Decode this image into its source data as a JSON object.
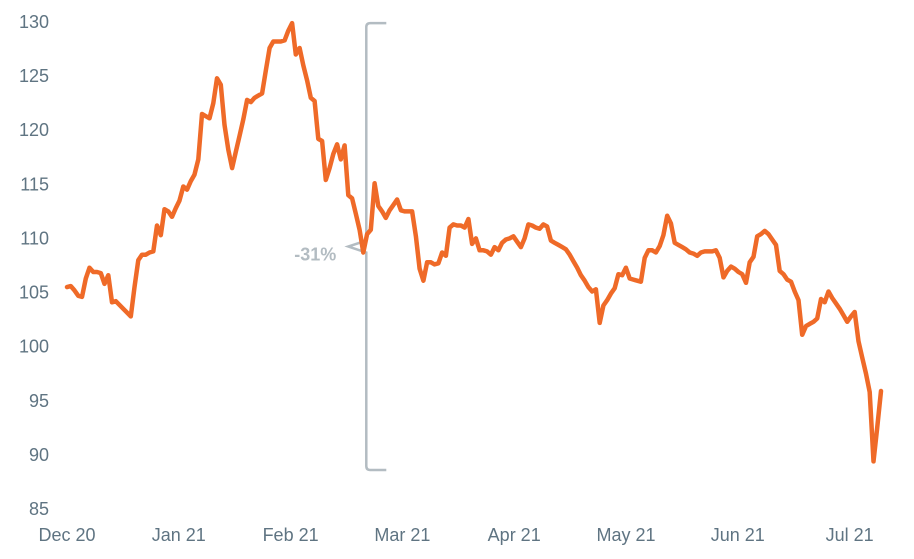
{
  "chart_data": {
    "type": "line",
    "title": "",
    "xlabel": "",
    "ylabel": "",
    "ylim": [
      85,
      130
    ],
    "y_ticks": [
      85,
      90,
      95,
      100,
      105,
      110,
      115,
      120,
      125,
      130
    ],
    "x_ticks": [
      "Dec 20",
      "Jan 21",
      "Feb 21",
      "Mar 21",
      "Apr 21",
      "May 21",
      "Jun 21",
      "Jul 21"
    ],
    "grid": false,
    "line_color": "#ef6a28",
    "annotation": {
      "label": "-31%",
      "color": "#b3bcc2",
      "y_top": 129.9,
      "y_bottom": 88.6,
      "day": 39
    },
    "series": [
      {
        "name": "",
        "points": [
          [
            0,
            105.5
          ],
          [
            1,
            105.6
          ],
          [
            2,
            105.2
          ],
          [
            3,
            104.7
          ],
          [
            4,
            104.6
          ],
          [
            5,
            106.3
          ],
          [
            6,
            107.3
          ],
          [
            7,
            106.9
          ],
          [
            8,
            106.9
          ],
          [
            9,
            106.8
          ],
          [
            10,
            105.8
          ],
          [
            11,
            106.6
          ],
          [
            12,
            104.1
          ],
          [
            13,
            104.2
          ],
          [
            15,
            103.5
          ],
          [
            17,
            102.8
          ],
          [
            18,
            105.5
          ],
          [
            19,
            108.0
          ],
          [
            20,
            108.5
          ],
          [
            21,
            108.5
          ],
          [
            22,
            108.7
          ],
          [
            23,
            108.8
          ],
          [
            24,
            111.2
          ],
          [
            25,
            110.3
          ],
          [
            26,
            112.7
          ],
          [
            27,
            112.5
          ],
          [
            28,
            112.0
          ],
          [
            29,
            112.8
          ],
          [
            30,
            113.5
          ],
          [
            31,
            114.8
          ],
          [
            32,
            114.5
          ],
          [
            33,
            115.3
          ],
          [
            34,
            115.9
          ],
          [
            35,
            117.3
          ],
          [
            36,
            121.5
          ],
          [
            37,
            121.3
          ],
          [
            38,
            121.1
          ],
          [
            39,
            122.5
          ],
          [
            40,
            124.8
          ],
          [
            41,
            124.2
          ],
          [
            42,
            120.5
          ],
          [
            43,
            118.2
          ],
          [
            44,
            116.5
          ],
          [
            45,
            118.0
          ],
          [
            46,
            119.5
          ],
          [
            47,
            121.0
          ],
          [
            48,
            122.8
          ],
          [
            49,
            122.6
          ],
          [
            50,
            123.0
          ],
          [
            51,
            123.2
          ],
          [
            52,
            123.4
          ],
          [
            53,
            125.5
          ],
          [
            54,
            127.6
          ],
          [
            55,
            128.2
          ],
          [
            56,
            128.2
          ],
          [
            57,
            128.2
          ],
          [
            58,
            128.3
          ],
          [
            59,
            129.2
          ],
          [
            60,
            129.9
          ],
          [
            61,
            127.0
          ],
          [
            62,
            127.6
          ],
          [
            63,
            126.0
          ],
          [
            64,
            124.6
          ],
          [
            65,
            123.0
          ],
          [
            66,
            122.7
          ],
          [
            67,
            119.2
          ],
          [
            68,
            119.0
          ],
          [
            69,
            115.4
          ],
          [
            70,
            116.5
          ],
          [
            71,
            117.8
          ],
          [
            72,
            118.7
          ],
          [
            73,
            117.3
          ],
          [
            74,
            118.6
          ],
          [
            75,
            114.0
          ],
          [
            76,
            113.7
          ],
          [
            77,
            112.3
          ],
          [
            78,
            110.8
          ],
          [
            79,
            108.7
          ],
          [
            80,
            110.4
          ],
          [
            81,
            110.8
          ],
          [
            82,
            115.1
          ],
          [
            83,
            113.0
          ],
          [
            84,
            112.5
          ],
          [
            85,
            111.9
          ],
          [
            86,
            112.6
          ],
          [
            87,
            113.1
          ],
          [
            88,
            113.6
          ],
          [
            89,
            112.6
          ],
          [
            90,
            112.5
          ],
          [
            91,
            112.5
          ],
          [
            92,
            112.5
          ],
          [
            93,
            110.2
          ],
          [
            94,
            107.2
          ],
          [
            95,
            106.1
          ],
          [
            96,
            107.8
          ],
          [
            97,
            107.8
          ],
          [
            98,
            107.6
          ],
          [
            99,
            107.7
          ],
          [
            100,
            108.7
          ],
          [
            101,
            108.4
          ],
          [
            102,
            111.0
          ],
          [
            103,
            111.3
          ],
          [
            104,
            111.2
          ],
          [
            105,
            111.2
          ],
          [
            106,
            111.0
          ],
          [
            107,
            111.8
          ],
          [
            108,
            109.5
          ],
          [
            109,
            110.0
          ],
          [
            110,
            108.9
          ],
          [
            111,
            108.9
          ],
          [
            112,
            108.8
          ],
          [
            113,
            108.5
          ],
          [
            114,
            109.2
          ],
          [
            115,
            108.9
          ],
          [
            116,
            109.6
          ],
          [
            117,
            109.9
          ],
          [
            118,
            110.0
          ],
          [
            119,
            110.2
          ],
          [
            120,
            109.7
          ],
          [
            121,
            109.2
          ],
          [
            122,
            110.0
          ],
          [
            123,
            111.3
          ],
          [
            124,
            111.2
          ],
          [
            125,
            111.0
          ],
          [
            126,
            110.9
          ],
          [
            127,
            111.3
          ],
          [
            128,
            111.1
          ],
          [
            129,
            109.8
          ],
          [
            130,
            109.6
          ],
          [
            131,
            109.4
          ],
          [
            132,
            109.2
          ],
          [
            133,
            109.0
          ],
          [
            134,
            108.5
          ],
          [
            135,
            107.9
          ],
          [
            136,
            107.3
          ],
          [
            137,
            106.6
          ],
          [
            138,
            106.1
          ],
          [
            139,
            105.5
          ],
          [
            140,
            105.1
          ],
          [
            141,
            105.3
          ],
          [
            142,
            102.2
          ],
          [
            143,
            103.8
          ],
          [
            144,
            104.3
          ],
          [
            145,
            104.9
          ],
          [
            146,
            105.4
          ],
          [
            147,
            106.7
          ],
          [
            148,
            106.6
          ],
          [
            149,
            107.3
          ],
          [
            150,
            106.3
          ],
          [
            151,
            106.2
          ],
          [
            152,
            106.1
          ],
          [
            153,
            106.0
          ],
          [
            154,
            108.2
          ],
          [
            155,
            108.9
          ],
          [
            156,
            108.9
          ],
          [
            157,
            108.7
          ],
          [
            158,
            109.3
          ],
          [
            159,
            110.3
          ],
          [
            160,
            112.1
          ],
          [
            161,
            111.4
          ],
          [
            162,
            109.6
          ],
          [
            163,
            109.4
          ],
          [
            164,
            109.2
          ],
          [
            165,
            109.0
          ],
          [
            166,
            108.7
          ],
          [
            167,
            108.6
          ],
          [
            168,
            108.4
          ],
          [
            169,
            108.7
          ],
          [
            170,
            108.8
          ],
          [
            171,
            108.8
          ],
          [
            172,
            108.8
          ],
          [
            173,
            108.9
          ],
          [
            174,
            108.2
          ],
          [
            175,
            106.4
          ],
          [
            176,
            107.0
          ],
          [
            177,
            107.4
          ],
          [
            178,
            107.2
          ],
          [
            179,
            106.9
          ],
          [
            180,
            106.7
          ],
          [
            181,
            105.9
          ],
          [
            182,
            107.8
          ],
          [
            183,
            108.3
          ],
          [
            184,
            110.2
          ],
          [
            185,
            110.4
          ],
          [
            186,
            110.7
          ],
          [
            187,
            110.4
          ],
          [
            188,
            109.9
          ],
          [
            189,
            109.4
          ],
          [
            190,
            107.0
          ],
          [
            191,
            106.7
          ],
          [
            192,
            106.2
          ],
          [
            193,
            106.0
          ],
          [
            194,
            105.1
          ],
          [
            195,
            104.3
          ],
          [
            196,
            101.1
          ],
          [
            197,
            101.9
          ],
          [
            198,
            102.1
          ],
          [
            199,
            102.3
          ],
          [
            200,
            102.6
          ],
          [
            201,
            104.4
          ],
          [
            202,
            104.1
          ],
          [
            203,
            105.1
          ],
          [
            204,
            104.5
          ],
          [
            205,
            104.0
          ],
          [
            206,
            103.5
          ],
          [
            207,
            102.9
          ],
          [
            208,
            102.3
          ],
          [
            209,
            102.8
          ],
          [
            210,
            103.2
          ],
          [
            211,
            100.5
          ],
          [
            212,
            99.0
          ],
          [
            213,
            97.5
          ],
          [
            214,
            95.8
          ],
          [
            215,
            89.4
          ],
          [
            216,
            92.5
          ],
          [
            217,
            95.9
          ]
        ]
      }
    ]
  }
}
